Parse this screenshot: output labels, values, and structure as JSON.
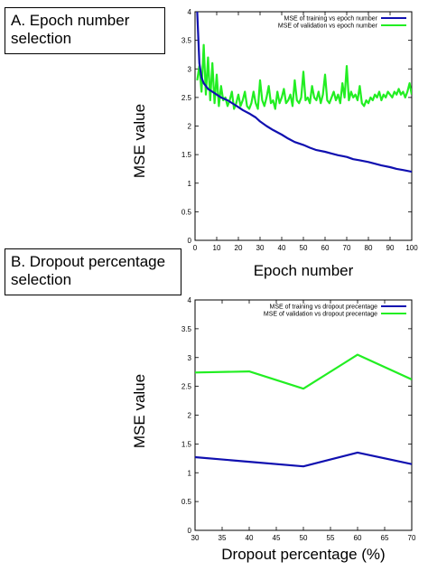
{
  "panels": {
    "a_label": "A. Epoch number selection",
    "b_label": "B. Dropout percentage selection"
  },
  "colors": {
    "training": "#1010b0",
    "validation": "#22ee22"
  },
  "chart_data": [
    {
      "type": "line",
      "xlabel": "Epoch number",
      "ylabel": "MSE value",
      "xlim": [
        0,
        100
      ],
      "ylim": [
        0,
        4
      ],
      "xticks": [
        0,
        10,
        20,
        30,
        40,
        50,
        60,
        70,
        80,
        90,
        100
      ],
      "yticks": [
        0,
        0.5,
        1,
        1.5,
        2,
        2.5,
        3,
        3.5,
        4
      ],
      "legend_position": "top-right",
      "series": [
        {
          "name": "MSE of training vs epoch number",
          "color": "#1010b0",
          "x": [
            1,
            2,
            3,
            4,
            5,
            6,
            8,
            10,
            12,
            15,
            18,
            20,
            22,
            25,
            28,
            30,
            33,
            36,
            40,
            43,
            46,
            50,
            53,
            56,
            60,
            63,
            66,
            70,
            73,
            76,
            80,
            83,
            86,
            90,
            93,
            96,
            100
          ],
          "y": [
            4.0,
            3.1,
            2.85,
            2.75,
            2.7,
            2.65,
            2.6,
            2.55,
            2.5,
            2.45,
            2.38,
            2.33,
            2.28,
            2.22,
            2.15,
            2.08,
            2.0,
            1.93,
            1.85,
            1.78,
            1.72,
            1.67,
            1.62,
            1.58,
            1.55,
            1.52,
            1.49,
            1.46,
            1.42,
            1.4,
            1.37,
            1.34,
            1.31,
            1.28,
            1.25,
            1.23,
            1.2
          ]
        },
        {
          "name": "MSE of validation vs epoch number",
          "color": "#22ee22",
          "x": [
            1,
            2,
            3,
            4,
            5,
            6,
            7,
            8,
            9,
            10,
            11,
            12,
            13,
            14,
            15,
            16,
            17,
            18,
            19,
            20,
            21,
            22,
            23,
            24,
            25,
            26,
            27,
            28,
            29,
            30,
            31,
            32,
            33,
            34,
            35,
            36,
            37,
            38,
            39,
            40,
            41,
            42,
            43,
            44,
            45,
            46,
            47,
            48,
            49,
            50,
            51,
            52,
            53,
            54,
            55,
            56,
            57,
            58,
            59,
            60,
            61,
            62,
            63,
            64,
            65,
            66,
            67,
            68,
            69,
            70,
            71,
            72,
            73,
            74,
            75,
            76,
            77,
            78,
            79,
            80,
            81,
            82,
            83,
            84,
            85,
            86,
            87,
            88,
            89,
            90,
            91,
            92,
            93,
            94,
            95,
            96,
            97,
            98,
            99,
            100
          ],
          "y": [
            2.8,
            3.05,
            2.6,
            3.42,
            2.55,
            3.2,
            2.45,
            3.1,
            2.4,
            2.9,
            2.35,
            2.7,
            2.45,
            2.5,
            2.35,
            2.45,
            2.6,
            2.3,
            2.4,
            2.55,
            2.35,
            2.45,
            2.6,
            2.35,
            2.3,
            2.4,
            2.6,
            2.4,
            2.3,
            2.8,
            2.45,
            2.35,
            2.5,
            2.7,
            2.4,
            2.45,
            2.3,
            2.6,
            2.4,
            2.5,
            2.65,
            2.4,
            2.45,
            2.55,
            2.35,
            2.8,
            2.45,
            2.4,
            2.5,
            2.95,
            2.45,
            2.5,
            2.4,
            2.7,
            2.5,
            2.45,
            2.6,
            2.4,
            2.55,
            2.9,
            2.45,
            2.4,
            2.5,
            2.6,
            2.45,
            2.55,
            2.4,
            2.75,
            2.5,
            3.05,
            2.45,
            2.6,
            2.5,
            2.55,
            2.45,
            2.7,
            2.4,
            2.35,
            2.45,
            2.4,
            2.5,
            2.45,
            2.55,
            2.5,
            2.6,
            2.45,
            2.55,
            2.5,
            2.6,
            2.55,
            2.5,
            2.6,
            2.55,
            2.65,
            2.55,
            2.6,
            2.5,
            2.6,
            2.75,
            2.55
          ]
        }
      ]
    },
    {
      "type": "line",
      "xlabel": "Dropout percentage (%)",
      "ylabel": "MSE value",
      "xlim": [
        30,
        70
      ],
      "ylim": [
        0,
        4
      ],
      "xticks": [
        30,
        35,
        40,
        45,
        50,
        55,
        60,
        65,
        70
      ],
      "yticks": [
        0,
        0.5,
        1,
        1.5,
        2,
        2.5,
        3,
        3.5,
        4
      ],
      "legend_position": "top-right",
      "series": [
        {
          "name": "MSE of training vs dropout precentage",
          "color": "#1010b0",
          "x": [
            30,
            40,
            50,
            60,
            70
          ],
          "y": [
            1.27,
            1.19,
            1.11,
            1.35,
            1.15
          ]
        },
        {
          "name": "MSE of validation vs dropout precentage",
          "color": "#22ee22",
          "x": [
            30,
            40,
            50,
            60,
            70
          ],
          "y": [
            2.74,
            2.76,
            2.46,
            3.05,
            2.62
          ]
        }
      ]
    }
  ]
}
